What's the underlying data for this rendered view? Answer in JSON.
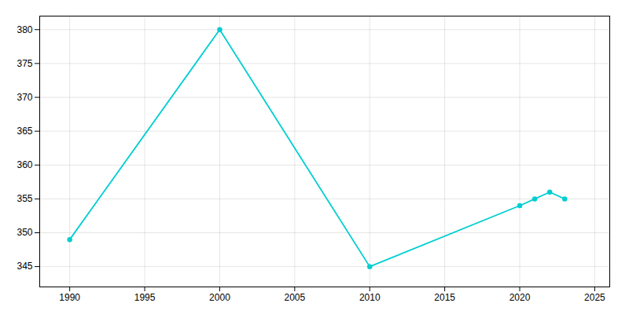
{
  "chart_data": {
    "type": "line",
    "x": [
      1990,
      2000,
      2010,
      2020,
      2021,
      2022,
      2023
    ],
    "values": [
      349,
      380,
      345,
      354,
      355,
      356,
      355
    ],
    "color": "#00CED1",
    "marker": "circle",
    "xlim": [
      1988,
      2026
    ],
    "ylim": [
      342,
      382
    ],
    "xticks": [
      1990,
      1995,
      2000,
      2005,
      2010,
      2015,
      2020,
      2025
    ],
    "yticks": [
      345,
      350,
      355,
      360,
      365,
      370,
      375,
      380
    ],
    "grid": true
  }
}
